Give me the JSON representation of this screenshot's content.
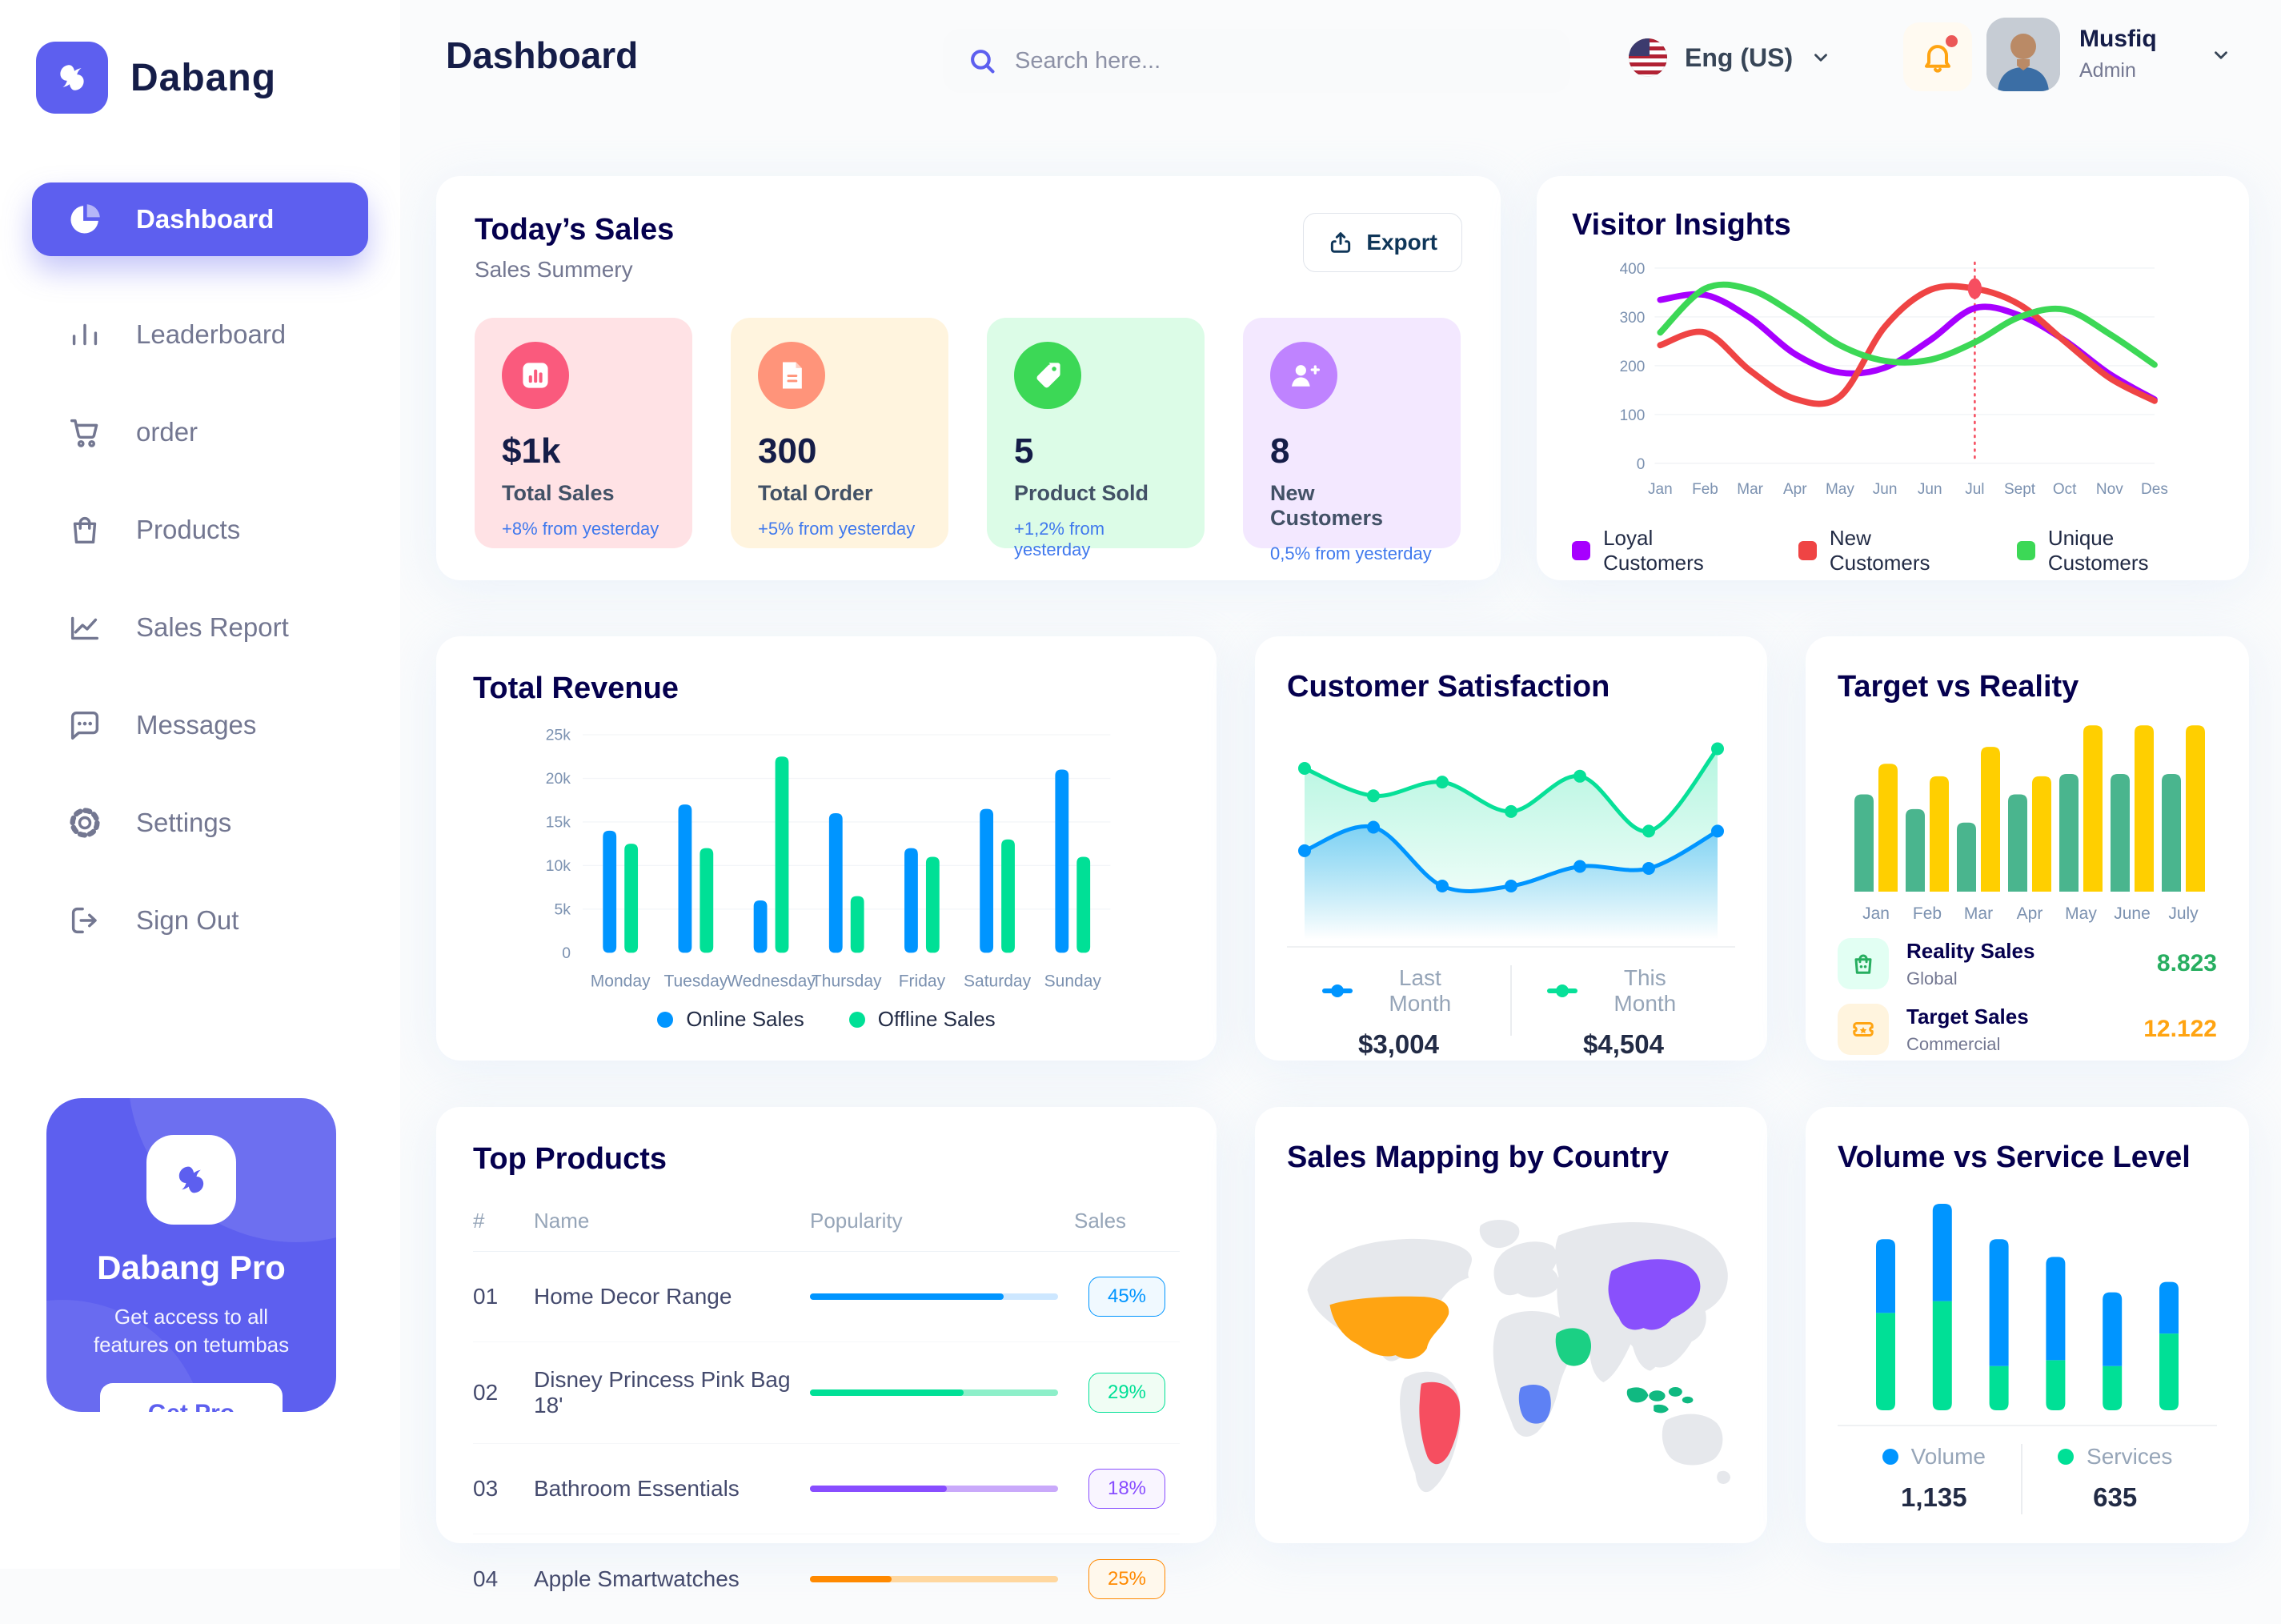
{
  "app": {
    "name": "Dabang"
  },
  "palette": {
    "primary": "#5D5FEF",
    "heading": "#151D48",
    "section_title": "#05004E",
    "muted": "#737791",
    "axis": "#7B91B0",
    "delta_blue": "#4079ED",
    "page_bg": "#FAFBFC"
  },
  "header": {
    "title": "Dashboard",
    "search_placeholder": "Search here...",
    "language": "Eng (US)",
    "user_name": "Musfiq",
    "user_role": "Admin"
  },
  "sidebar": {
    "items": [
      {
        "label": "Dashboard",
        "icon": "pie-chart-icon",
        "active": true
      },
      {
        "label": "Leaderboard",
        "icon": "bar-chart-icon",
        "active": false
      },
      {
        "label": "order",
        "icon": "cart-icon",
        "active": false
      },
      {
        "label": "Products",
        "icon": "bag-icon",
        "active": false
      },
      {
        "label": "Sales Report",
        "icon": "line-chart-icon",
        "active": false
      },
      {
        "label": "Messages",
        "icon": "chat-icon",
        "active": false
      },
      {
        "label": "Settings",
        "icon": "gear-icon",
        "active": false
      },
      {
        "label": "Sign Out",
        "icon": "sign-out-icon",
        "active": false
      }
    ],
    "pro_card": {
      "title": "Dabang Pro",
      "description": "Get access to all features on tetumbas",
      "button": "Get Pro"
    }
  },
  "today_sales": {
    "title": "Today’s Sales",
    "subtitle": "Sales Summery",
    "export_label": "Export",
    "cards": [
      {
        "value": "$1k",
        "label": "Total Sales",
        "delta": "+8% from yesterday",
        "bg": "#FFE2E5",
        "icon_bg": "#FA5A7D",
        "icon": "chart-bar-icon"
      },
      {
        "value": "300",
        "label": "Total Order",
        "delta": "+5% from yesterday",
        "bg": "#FFF4DE",
        "icon_bg": "#FF947A",
        "icon": "order-file-icon"
      },
      {
        "value": "5",
        "label": "Product Sold",
        "delta": "+1,2% from yesterday",
        "bg": "#DCFCE7",
        "icon_bg": "#3CD856",
        "icon": "tag-icon"
      },
      {
        "value": "8",
        "label": "New Customers",
        "delta": "0,5% from yesterday",
        "bg": "#F3E8FF",
        "icon_bg": "#BF83FF",
        "icon": "user-plus-icon"
      }
    ]
  },
  "charts": {
    "visitor_insights": {
      "title": "Visitor Insights",
      "type": "line",
      "x_labels": [
        "Jan",
        "Feb",
        "Mar",
        "Apr",
        "May",
        "Jun",
        "Jun",
        "Jul",
        "Sept",
        "Oct",
        "Nov",
        "Des"
      ],
      "yticks": [
        0,
        100,
        200,
        300,
        400
      ],
      "ymax": 400,
      "marker": {
        "series_index": 1,
        "point_index": 7
      },
      "series": [
        {
          "name": "Loyal Customers",
          "color": "#A700FF",
          "values": [
            335,
            345,
            298,
            224,
            186,
            196,
            252,
            318,
            303,
            252,
            183,
            131
          ]
        },
        {
          "name": "New Customers",
          "color": "#EF4444",
          "values": [
            242,
            268,
            190,
            132,
            137,
            280,
            355,
            358,
            325,
            250,
            175,
            128
          ]
        },
        {
          "name": "Unique Customers",
          "color": "#3CD856",
          "values": [
            268,
            358,
            356,
            305,
            242,
            210,
            212,
            248,
            300,
            315,
            265,
            202
          ]
        }
      ]
    },
    "total_revenue": {
      "title": "Total Revenue",
      "type": "bar",
      "categories": [
        "Monday",
        "Tuesday",
        "Wednesday",
        "Thursday",
        "Friday",
        "Saturday",
        "Sunday"
      ],
      "ymax": 25,
      "yticks": [
        0,
        5,
        10,
        15,
        20,
        25
      ],
      "ytick_labels": [
        "0",
        "5k",
        "10k",
        "15k",
        "20k",
        "25k"
      ],
      "series": [
        {
          "name": "Online Sales",
          "color": "#0095FF",
          "values": [
            14,
            17,
            6,
            16,
            12,
            16.5,
            21
          ]
        },
        {
          "name": "Offline Sales",
          "color": "#00E096",
          "values": [
            12.5,
            12,
            22.5,
            6.5,
            11,
            13,
            11
          ]
        }
      ]
    },
    "customer_satisfaction": {
      "title": "Customer Satisfaction",
      "type": "area",
      "series": [
        {
          "name": "Last Month",
          "color": "#0095FF",
          "total": "$3,004",
          "values": [
            38,
            50,
            20,
            20,
            30,
            29,
            48
          ]
        },
        {
          "name": "This Month",
          "color": "#07E098",
          "total": "$4,504",
          "values": [
            80,
            66,
            73,
            58,
            76,
            48,
            90
          ]
        }
      ]
    },
    "target_vs_reality": {
      "title": "Target vs Reality",
      "type": "bar",
      "categories": [
        "Jan",
        "Feb",
        "Mar",
        "Apr",
        "May",
        "June",
        "July"
      ],
      "ymax": 15,
      "series": [
        {
          "name": "Reality Sales",
          "subtitle": "Global",
          "color": "#4AB58E",
          "icon_bg": "#E2FFF3",
          "value": "8.823",
          "value_color": "#27AE60",
          "values": [
            8.6,
            7.3,
            6.1,
            8.6,
            10.4,
            10.4,
            10.4
          ]
        },
        {
          "name": "Target Sales",
          "subtitle": "Commercial",
          "color": "#FFCF00",
          "icon_bg": "#FFF4DE",
          "value": "12.122",
          "value_color": "#FFA412",
          "values": [
            11.3,
            10.2,
            12.8,
            10.2,
            14.7,
            14.7,
            14.7
          ]
        }
      ]
    },
    "volume_service": {
      "title": "Volume vs Service Level",
      "type": "stacked-bar",
      "series": [
        {
          "name": "Volume",
          "color": "#0095FF",
          "total": "1,135",
          "values": [
            250,
            330,
            430,
            350,
            250,
            175
          ]
        },
        {
          "name": "Services",
          "color": "#00E096",
          "total": "635",
          "values": [
            330,
            370,
            150,
            170,
            150,
            260
          ]
        }
      ]
    }
  },
  "top_products": {
    "title": "Top Products",
    "columns": [
      "#",
      "Name",
      "Popularity",
      "Sales"
    ],
    "rows": [
      {
        "num": "01",
        "name": "Home Decor Range",
        "badge": "45%",
        "fill_pct": 78,
        "color": "#0095FF",
        "track": "#CDE7FF",
        "badge_bg": "#F0F9FF"
      },
      {
        "num": "02",
        "name": "Disney Princess Pink Bag 18'",
        "badge": "29%",
        "fill_pct": 62,
        "color": "#00E096",
        "track": "#8DEFC9",
        "badge_bg": "#F0FDF4"
      },
      {
        "num": "03",
        "name": "Bathroom Essentials",
        "badge": "18%",
        "fill_pct": 55,
        "color": "#884DFF",
        "track": "#C9A9FA",
        "badge_bg": "#F9F5FF"
      },
      {
        "num": "04",
        "name": "Apple Smartwatches",
        "badge": "25%",
        "fill_pct": 33,
        "color": "#FF8900",
        "track": "#FFD79F",
        "badge_bg": "#FFF8EC"
      }
    ]
  },
  "sales_map": {
    "title": "Sales Mapping by Country",
    "countries": [
      {
        "name": "United States",
        "color": "#FFA412"
      },
      {
        "name": "Brazil",
        "color": "#F64E60"
      },
      {
        "name": "China",
        "color": "#8950FC"
      },
      {
        "name": "Saudi Arabia",
        "color": "#1BD084"
      },
      {
        "name": "DR Congo",
        "color": "#5E81F4"
      },
      {
        "name": "Indonesia",
        "color": "#10B981"
      }
    ]
  }
}
